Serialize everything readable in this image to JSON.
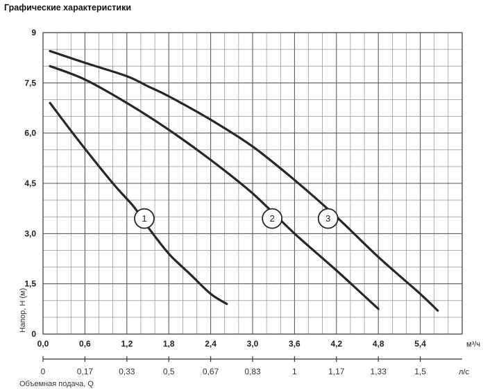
{
  "title": "Графические характеристики",
  "chart_data": {
    "type": "line",
    "ylabel": "Напор, H (м)",
    "xlabel": "Объемная подача, Q",
    "x_unit": "м³/ч",
    "x2_unit": "л/с",
    "xlim": [
      0,
      6.0
    ],
    "ylim": [
      0,
      9
    ],
    "grid": true,
    "x_ticks": [
      "0,0",
      "0,6",
      "1,2",
      "1,8",
      "2,4",
      "3,0",
      "3,6",
      "4,2",
      "4,8",
      "5,4"
    ],
    "x2_ticks": [
      "0",
      "0,17",
      "0,33",
      "0,5",
      "0,67",
      "0,83",
      "1",
      "1,17",
      "1,33",
      "1,5"
    ],
    "y_ticks": [
      "0",
      "1,5",
      "3,0",
      "4,5",
      "6,0",
      "7,5",
      "9"
    ],
    "series": [
      {
        "name": "1",
        "x": [
          0.1,
          0.5,
          1.0,
          1.3,
          1.5,
          1.8,
          2.1,
          2.4,
          2.63
        ],
        "y": [
          6.9,
          5.8,
          4.5,
          3.8,
          3.2,
          2.4,
          1.8,
          1.2,
          0.9
        ]
      },
      {
        "name": "2",
        "x": [
          0.1,
          0.6,
          1.2,
          1.8,
          2.4,
          3.0,
          3.6,
          4.2,
          4.8
        ],
        "y": [
          8.0,
          7.6,
          6.9,
          6.1,
          5.2,
          4.2,
          3.0,
          1.9,
          0.75
        ]
      },
      {
        "name": "3",
        "x": [
          0.1,
          0.6,
          1.2,
          1.5,
          1.8,
          2.4,
          3.0,
          3.6,
          4.2,
          4.8,
          5.4,
          5.65
        ],
        "y": [
          8.45,
          8.1,
          7.7,
          7.4,
          7.1,
          6.4,
          5.6,
          4.6,
          3.5,
          2.3,
          1.2,
          0.7
        ]
      }
    ],
    "labels": [
      {
        "text": "1",
        "x": 1.45,
        "y": 3.45
      },
      {
        "text": "2",
        "x": 3.28,
        "y": 3.45
      },
      {
        "text": "3",
        "x": 4.08,
        "y": 3.45
      }
    ]
  }
}
